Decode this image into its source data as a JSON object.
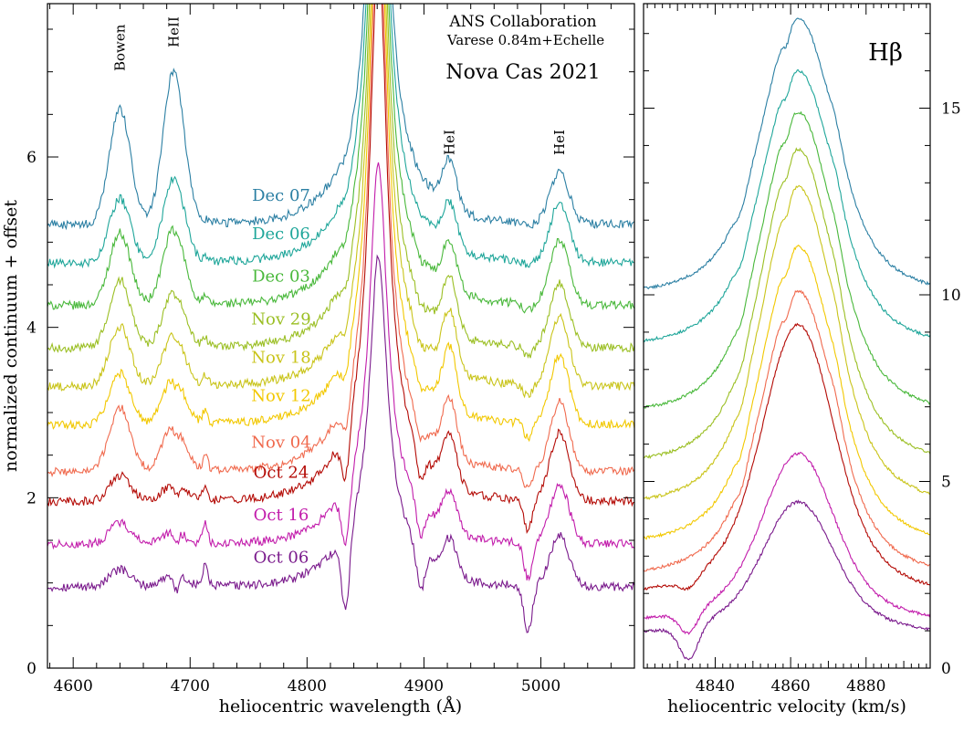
{
  "chart_data": [
    {
      "type": "line",
      "panel": "left",
      "xlabel": "heliocentric wavelength (Å)",
      "ylabel": "normalized continuum + offset",
      "xlim": [
        4578,
        5080
      ],
      "ylim": [
        0,
        7.8
      ],
      "x_ticks": [
        4600,
        4700,
        4800,
        4900,
        5000
      ],
      "y_ticks": [
        0,
        2,
        4,
        6
      ],
      "grid": false,
      "annotations": {
        "credit_line1": "ANS Collaboration",
        "credit_line2": "Varese 0.84m+Echelle",
        "object": "Nova Cas 2021",
        "line_ids": [
          {
            "text": "Bowen",
            "x": 4640
          },
          {
            "text": "HeII",
            "x": 4686
          },
          {
            "text": "HeI",
            "x": 4922
          },
          {
            "text": "HeI",
            "x": 5016
          }
        ]
      },
      "features": [
        {
          "center": 4640,
          "width": 9,
          "type": "emission",
          "label": "Bowen"
        },
        {
          "center": 4686,
          "width": 9,
          "type": "emission",
          "label": "HeII"
        },
        {
          "center": 4713,
          "width": 2.5,
          "type": "emission",
          "label": ""
        },
        {
          "center": 4861,
          "width": 12,
          "type": "emission",
          "label": "Hbeta"
        },
        {
          "center": 4922,
          "width": 6,
          "type": "emission",
          "label": "HeI"
        },
        {
          "center": 5016,
          "width": 8,
          "type": "emission",
          "label": "HeI"
        }
      ],
      "series": [
        {
          "name": "Oct 06",
          "color": "#7a1a8c",
          "baseline": 0.95,
          "bowen": 0.2,
          "heii": 0.15,
          "hei_4922": 0.4,
          "hei_5016": 0.6,
          "hbeta_peak": 4.4,
          "absorption_depth": 0.9
        },
        {
          "name": "Oct 16",
          "color": "#c21cab",
          "baseline": 1.45,
          "bowen": 0.25,
          "heii": 0.15,
          "hei_4922": 0.45,
          "hei_5016": 0.7,
          "hbeta_peak": 5.5,
          "absorption_depth": 0.7
        },
        {
          "name": "Oct 24",
          "color": "#b40b06",
          "baseline": 1.95,
          "bowen": 0.3,
          "heii": 0.2,
          "hei_4922": 0.6,
          "hei_5016": 0.8,
          "hbeta_peak": 8.0,
          "absorption_depth": 0.6
        },
        {
          "name": "Nov 04",
          "color": "#f06a4e",
          "baseline": 2.3,
          "bowen": 0.75,
          "heii": 0.55,
          "hei_4922": 0.65,
          "hei_5016": 0.8,
          "hbeta_peak": 8.5,
          "absorption_depth": 0.4
        },
        {
          "name": "Nov 12",
          "color": "#f2c800",
          "baseline": 2.85,
          "bowen": 0.6,
          "heii": 0.55,
          "hei_4922": 0.7,
          "hei_5016": 0.8,
          "hbeta_peak": 9.0,
          "absorption_depth": 0.3
        },
        {
          "name": "Nov 18",
          "color": "#c9c41a",
          "baseline": 3.3,
          "bowen": 0.7,
          "heii": 0.6,
          "hei_4922": 0.7,
          "hei_5016": 0.8,
          "hbeta_peak": 9.5,
          "absorption_depth": 0.25
        },
        {
          "name": "Nov 29",
          "color": "#9bbf24",
          "baseline": 3.75,
          "bowen": 0.8,
          "heii": 0.65,
          "hei_4922": 0.65,
          "hei_5016": 0.75,
          "hbeta_peak": 10.0,
          "absorption_depth": 0.2
        },
        {
          "name": "Dec 03",
          "color": "#49b83b",
          "baseline": 4.25,
          "bowen": 0.85,
          "heii": 0.9,
          "hei_4922": 0.55,
          "hei_5016": 0.75,
          "hbeta_peak": 10.5,
          "absorption_depth": 0.15
        },
        {
          "name": "Dec 06",
          "color": "#1fa69a",
          "baseline": 4.75,
          "bowen": 0.75,
          "heii": 1.0,
          "hei_4922": 0.5,
          "hei_5016": 0.7,
          "hbeta_peak": 11.0,
          "absorption_depth": 0.1
        },
        {
          "name": "Dec 07",
          "color": "#2b7fa3",
          "baseline": 5.2,
          "bowen": 1.35,
          "heii": 1.8,
          "hei_4922": 0.55,
          "hei_5016": 0.6,
          "hbeta_peak": 11.5,
          "absorption_depth": 0.1
        }
      ]
    },
    {
      "type": "line",
      "panel": "right",
      "title": "Hβ",
      "xlabel": "heliocentric velocity (km/s)",
      "xlim": [
        4821,
        4897
      ],
      "ylim": [
        0,
        17.8
      ],
      "x_ticks": [
        4840,
        4860,
        4880
      ],
      "y_ticks": [
        0,
        5,
        10,
        15
      ],
      "grid": false,
      "series": [
        {
          "name": "Oct 06",
          "color": "#7a1a8c",
          "baseline": 0.95,
          "peak": 4.45
        },
        {
          "name": "Oct 16",
          "color": "#c21cab",
          "baseline": 1.3,
          "peak": 5.75
        },
        {
          "name": "Oct 24",
          "color": "#b40b06",
          "baseline": 2.05,
          "peak": 9.2
        },
        {
          "name": "Nov 04",
          "color": "#f06a4e",
          "baseline": 2.55,
          "peak": 10.1
        },
        {
          "name": "Nov 12",
          "color": "#f2c800",
          "baseline": 3.4,
          "peak": 11.3
        },
        {
          "name": "Nov 18",
          "color": "#c9c41a",
          "baseline": 4.45,
          "peak": 12.9
        },
        {
          "name": "Nov 29",
          "color": "#9bbf24",
          "baseline": 5.55,
          "peak": 13.9
        },
        {
          "name": "Dec 03",
          "color": "#49b83b",
          "baseline": 6.9,
          "peak": 14.9
        },
        {
          "name": "Dec 06",
          "color": "#1fa69a",
          "baseline": 8.7,
          "peak": 16.0
        },
        {
          "name": "Dec 07",
          "color": "#2b7fa3",
          "baseline": 10.1,
          "peak": 17.4
        }
      ]
    }
  ]
}
